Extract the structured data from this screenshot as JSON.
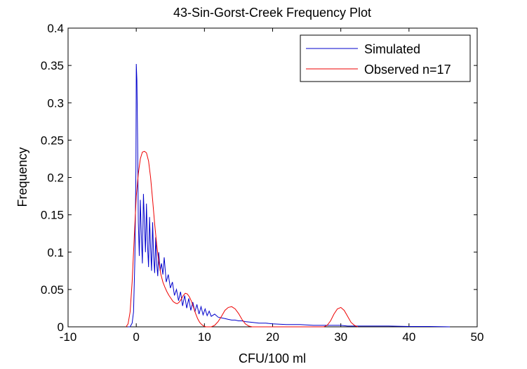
{
  "chart_data": {
    "type": "line",
    "title": "43-Sin-Gorst-Creek Frequency Plot",
    "xlabel": "CFU/100 ml",
    "ylabel": "Frequency",
    "xlim": [
      -10,
      50
    ],
    "ylim": [
      0,
      0.4
    ],
    "xticks": [
      -10,
      0,
      10,
      20,
      30,
      40,
      50
    ],
    "xtick_labels": [
      "-10",
      "0",
      "10",
      "20",
      "30",
      "40",
      "50"
    ],
    "yticks": [
      0,
      0.05,
      0.1,
      0.15,
      0.2,
      0.25,
      0.3,
      0.35,
      0.4
    ],
    "ytick_labels": [
      "0",
      "0.05",
      "0.1",
      "0.15",
      "0.2",
      "0.25",
      "0.3",
      "0.35",
      "0.4"
    ],
    "grid": false,
    "legend_position": "top-right",
    "series": [
      {
        "name": "Simulated",
        "color": "#0000cc",
        "x": [
          -1.2,
          -0.9,
          -0.6,
          -0.4,
          -0.2,
          -0.05,
          0.0,
          0.1,
          0.2,
          0.3,
          0.45,
          0.6,
          0.75,
          0.9,
          1.05,
          1.2,
          1.35,
          1.5,
          1.65,
          1.8,
          1.95,
          2.1,
          2.25,
          2.4,
          2.55,
          2.7,
          2.85,
          3.0,
          3.15,
          3.3,
          3.5,
          3.7,
          3.9,
          4.1,
          4.4,
          4.7,
          5.0,
          5.3,
          5.6,
          5.9,
          6.2,
          6.5,
          6.8,
          7.1,
          7.4,
          7.7,
          8.0,
          8.3,
          8.6,
          8.9,
          9.2,
          9.5,
          9.8,
          10.1,
          10.4,
          10.7,
          11.0,
          11.5,
          12.0,
          12.5,
          13.0,
          13.5,
          14.0,
          14.5,
          15.0,
          15.5,
          16.0,
          17.0,
          18.0,
          19.0,
          20.0,
          22.0,
          24.0,
          26.0,
          28.0,
          29.0,
          30.0,
          31.0,
          32.0,
          34.0,
          37.0,
          40.0,
          43.0,
          46.0
        ],
        "y": [
          0.0,
          0.0,
          0.005,
          0.02,
          0.09,
          0.21,
          0.352,
          0.33,
          0.25,
          0.14,
          0.095,
          0.17,
          0.12,
          0.085,
          0.178,
          0.14,
          0.1,
          0.165,
          0.11,
          0.08,
          0.147,
          0.105,
          0.075,
          0.14,
          0.095,
          0.072,
          0.12,
          0.085,
          0.068,
          0.1,
          0.075,
          0.085,
          0.07,
          0.093,
          0.06,
          0.07,
          0.052,
          0.06,
          0.042,
          0.05,
          0.035,
          0.047,
          0.028,
          0.042,
          0.025,
          0.038,
          0.022,
          0.033,
          0.02,
          0.03,
          0.017,
          0.027,
          0.016,
          0.024,
          0.015,
          0.021,
          0.014,
          0.017,
          0.013,
          0.012,
          0.011,
          0.01,
          0.009,
          0.009,
          0.008,
          0.008,
          0.007,
          0.006,
          0.005,
          0.005,
          0.004,
          0.003,
          0.003,
          0.002,
          0.002,
          0.002,
          0.002,
          0.001,
          0.001,
          0.001,
          0.001,
          0.0005,
          0.0005,
          0.0
        ]
      },
      {
        "name": "Observed n=17",
        "color": "#ee0000",
        "x": [
          -1.5,
          -1.2,
          -0.9,
          -0.6,
          -0.3,
          0.0,
          0.3,
          0.6,
          0.9,
          1.2,
          1.5,
          1.8,
          2.1,
          2.4,
          2.7,
          3.0,
          3.3,
          3.6,
          3.9,
          4.2,
          4.5,
          4.8,
          5.1,
          5.4,
          5.7,
          6.0,
          6.3,
          6.6,
          6.9,
          7.2,
          7.5,
          7.8,
          8.1,
          8.4,
          8.7,
          9.0,
          9.3,
          9.6,
          9.9,
          10.2,
          10.5,
          11.0,
          11.5,
          12.0,
          12.5,
          13.0,
          13.5,
          14.0,
          14.5,
          15.0,
          15.5,
          16.0,
          16.5,
          17.0,
          18.0,
          20.0,
          22.0,
          24.0,
          26.0,
          27.5,
          28.0,
          28.5,
          29.0,
          29.5,
          30.0,
          30.5,
          31.0,
          31.5,
          32.0,
          32.5
        ],
        "y": [
          0.0,
          0.004,
          0.02,
          0.06,
          0.12,
          0.175,
          0.205,
          0.225,
          0.234,
          0.235,
          0.233,
          0.222,
          0.2,
          0.17,
          0.138,
          0.11,
          0.088,
          0.071,
          0.06,
          0.053,
          0.047,
          0.042,
          0.038,
          0.034,
          0.032,
          0.031,
          0.033,
          0.037,
          0.042,
          0.045,
          0.044,
          0.04,
          0.034,
          0.026,
          0.018,
          0.011,
          0.006,
          0.003,
          0.001,
          0.0,
          0.0,
          0.0,
          0.002,
          0.007,
          0.014,
          0.022,
          0.026,
          0.027,
          0.024,
          0.018,
          0.01,
          0.004,
          0.001,
          0.0,
          0.0,
          0.0,
          0.0,
          0.0,
          0.0,
          0.0,
          0.002,
          0.008,
          0.017,
          0.024,
          0.026,
          0.022,
          0.014,
          0.006,
          0.002,
          0.0
        ]
      }
    ]
  }
}
